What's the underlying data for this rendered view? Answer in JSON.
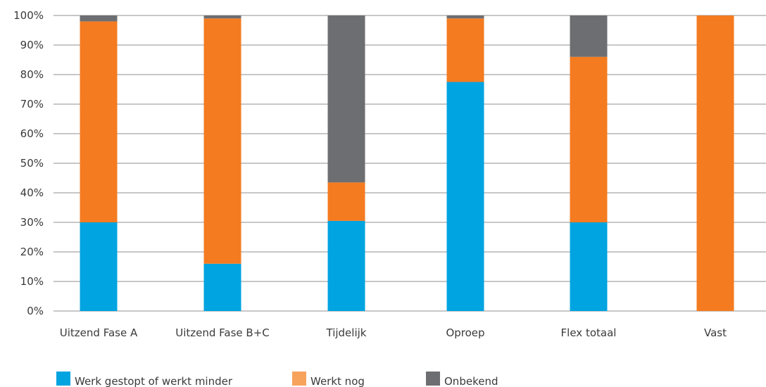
{
  "colors": {
    "werk_gestopt": "#00a4e0",
    "werkt_nog": "#f47b20",
    "onbekend": "#6d6e71",
    "legend_werkt_nog": "#f7a35c",
    "grid": "#8f8f8f",
    "text": "#3a3a3a"
  },
  "chart_data": {
    "type": "bar",
    "stacked": true,
    "categories": [
      "Uitzend Fase A",
      "Uitzend Fase B+C",
      "Tijdelijk",
      "Oproep",
      "Flex totaal",
      "Vast"
    ],
    "series": [
      {
        "name": "Werk gestopt of werkt minder",
        "values": [
          30,
          16,
          30.5,
          77.5,
          30,
          0
        ]
      },
      {
        "name": "Werkt nog",
        "values": [
          68,
          83,
          13,
          21.5,
          56,
          100
        ]
      },
      {
        "name": "Onbekend",
        "values": [
          2,
          1,
          56.5,
          1,
          14,
          0
        ]
      }
    ],
    "ylim": [
      0,
      100
    ],
    "yticks": [
      "0%",
      "10%",
      "20%",
      "30%",
      "40%",
      "50%",
      "60%",
      "70%",
      "80%",
      "90%",
      "100%"
    ],
    "grid": true,
    "legend_position": "bottom-left"
  }
}
